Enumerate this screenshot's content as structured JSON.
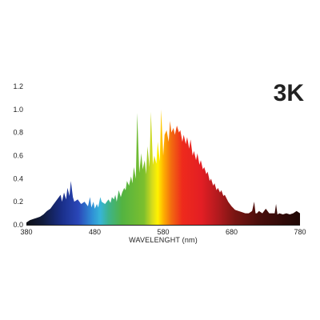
{
  "chart_data": {
    "type": "area",
    "title": "3K",
    "xlabel": "WAVELENGHT (nm)",
    "ylabel": "",
    "xlim": [
      380,
      780
    ],
    "ylim": [
      0,
      1.2
    ],
    "x_ticks": [
      "380",
      "480",
      "580",
      "680",
      "780"
    ],
    "y_ticks": [
      "0.0",
      "0.2",
      "0.4",
      "0.6",
      "0.8",
      "1.0",
      "1.2"
    ],
    "grid": false,
    "fill": "visible-spectrum gradient",
    "series": [
      {
        "x": [
          380,
          385,
          390,
          395,
          400,
          405,
          410,
          415,
          420,
          425,
          430,
          432,
          435,
          438,
          440,
          443,
          445,
          448,
          450,
          455,
          460,
          465,
          470,
          473,
          475,
          478,
          480,
          483,
          485,
          488,
          490,
          495,
          500,
          503,
          505,
          508,
          510,
          512,
          515,
          518,
          520,
          523,
          525,
          527,
          530,
          533,
          535,
          537,
          540,
          542,
          545,
          548,
          550,
          553,
          555,
          557,
          560,
          562,
          565,
          567,
          570,
          572,
          575,
          577,
          580,
          582,
          585,
          588,
          590,
          592,
          595,
          597,
          600,
          603,
          605,
          608,
          610,
          613,
          615,
          618,
          620,
          623,
          625,
          628,
          630,
          633,
          635,
          638,
          640,
          643,
          645,
          648,
          650,
          653,
          655,
          658,
          660,
          663,
          665,
          668,
          670,
          675,
          680,
          685,
          690,
          695,
          700,
          705,
          710,
          713,
          715,
          717,
          720,
          725,
          730,
          735,
          740,
          743,
          745,
          747,
          750,
          755,
          760,
          765,
          770,
          775,
          780
        ],
        "y": [
          0.02,
          0.04,
          0.05,
          0.06,
          0.07,
          0.09,
          0.12,
          0.14,
          0.18,
          0.22,
          0.26,
          0.2,
          0.28,
          0.22,
          0.32,
          0.25,
          0.38,
          0.24,
          0.2,
          0.22,
          0.18,
          0.2,
          0.16,
          0.24,
          0.15,
          0.2,
          0.14,
          0.18,
          0.15,
          0.24,
          0.2,
          0.18,
          0.22,
          0.19,
          0.24,
          0.22,
          0.26,
          0.2,
          0.3,
          0.24,
          0.28,
          0.32,
          0.3,
          0.38,
          0.34,
          0.42,
          0.36,
          0.5,
          0.4,
          0.97,
          0.45,
          0.62,
          0.48,
          0.56,
          0.44,
          0.68,
          0.5,
          0.98,
          0.52,
          0.6,
          0.53,
          0.72,
          0.55,
          1.0,
          0.6,
          0.78,
          0.82,
          0.72,
          0.9,
          0.8,
          0.84,
          0.78,
          0.86,
          0.8,
          0.82,
          0.72,
          0.78,
          0.7,
          0.76,
          0.66,
          0.74,
          0.6,
          0.64,
          0.56,
          0.62,
          0.52,
          0.56,
          0.48,
          0.5,
          0.44,
          0.46,
          0.38,
          0.4,
          0.34,
          0.36,
          0.3,
          0.32,
          0.28,
          0.3,
          0.25,
          0.26,
          0.2,
          0.16,
          0.13,
          0.12,
          0.11,
          0.1,
          0.1,
          0.12,
          0.2,
          0.1,
          0.1,
          0.12,
          0.1,
          0.14,
          0.1,
          0.1,
          0.1,
          0.18,
          0.09,
          0.1,
          0.09,
          0.1,
          0.09,
          0.1,
          0.12,
          0.1
        ]
      }
    ]
  }
}
